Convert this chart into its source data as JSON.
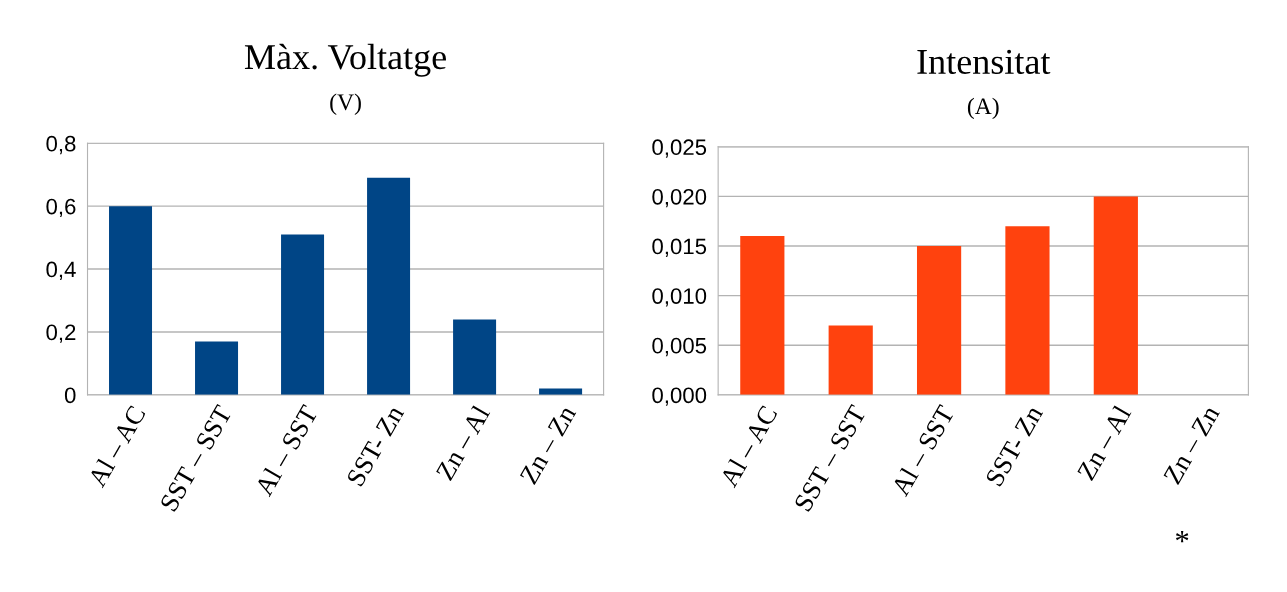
{
  "chart_data": [
    {
      "type": "bar",
      "title": "Màx. Voltatge",
      "subtitle": "(V)",
      "categories": [
        "Al – AC",
        "SST – SST",
        "Al – SST",
        "SST- Zn",
        "Zn – Al",
        "Zn – Zn"
      ],
      "values": [
        0.6,
        0.17,
        0.51,
        0.69,
        0.24,
        0.02
      ],
      "color": "#004586",
      "ylim": [
        0,
        0.8
      ],
      "yticks": [
        {
          "value": 0,
          "label": "0"
        },
        {
          "value": 0.2,
          "label": "0,2"
        },
        {
          "value": 0.4,
          "label": "0,4"
        },
        {
          "value": 0.6,
          "label": "0,6"
        },
        {
          "value": 0.8,
          "label": "0,8"
        }
      ],
      "grid": "y",
      "legend": false
    },
    {
      "type": "bar",
      "title": "Intensitat",
      "subtitle": "(A)",
      "categories": [
        "Al – AC",
        "SST – SST",
        "Al – SST",
        "SST- Zn",
        "Zn – Al",
        "Zn – Zn"
      ],
      "values": [
        0.016,
        0.007,
        0.015,
        0.017,
        0.02,
        null
      ],
      "color": "#ff420e",
      "ylim": [
        0,
        0.025
      ],
      "yticks": [
        {
          "value": 0,
          "label": "0,000"
        },
        {
          "value": 0.005,
          "label": "0,005"
        },
        {
          "value": 0.01,
          "label": "0,010"
        },
        {
          "value": 0.015,
          "label": "0,015"
        },
        {
          "value": 0.02,
          "label": "0,020"
        },
        {
          "value": 0.025,
          "label": "0,025"
        }
      ],
      "annotations": [
        "*"
      ],
      "grid": "y",
      "legend": false
    }
  ]
}
